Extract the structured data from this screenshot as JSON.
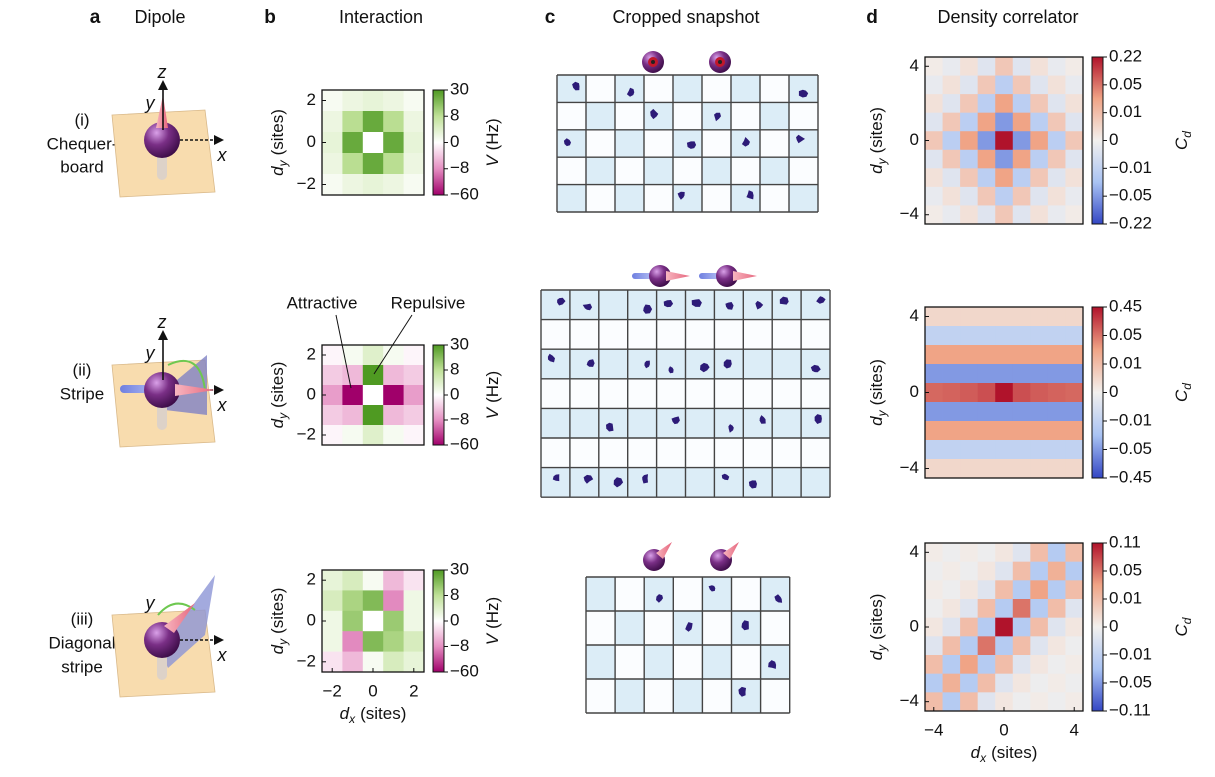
{
  "figure": {
    "panels": [
      {
        "letter": "a",
        "title": "Dipole"
      },
      {
        "letter": "b",
        "title": "Interaction"
      },
      {
        "letter": "c",
        "title": "Cropped snapshot"
      },
      {
        "letter": "d",
        "title": "Density correlator"
      }
    ],
    "rows": [
      {
        "roman": "(i)",
        "name": [
          "Chequer-",
          "board"
        ]
      },
      {
        "roman": "(ii)",
        "name": [
          "Stripe"
        ]
      },
      {
        "roman": "(iii)",
        "name": [
          "Diagonal",
          "stripe"
        ]
      }
    ],
    "axes": [
      "x",
      "y",
      "z"
    ]
  },
  "chart_data": [
    {
      "type": "heatmap",
      "xlim": [
        -2.5,
        2.5
      ],
      "ylim": [
        -2.5,
        2.5
      ],
      "yticks": [
        2,
        0,
        {
          "value": -2,
          "label": "−2"
        }
      ],
      "ylabel": {
        "var": "d",
        "sub": "y",
        "unit": "(sites)"
      },
      "clabel": {
        "var": "V",
        "unit": "(Hz)"
      },
      "clim": [
        -60,
        30
      ],
      "cticks": [
        30,
        8,
        0,
        {
          "value": -8,
          "label": "−8"
        },
        {
          "value": -60,
          "label": "−60"
        }
      ],
      "colormap": [
        "#a0006a",
        "#e58fc2",
        "#ffffff",
        "#bfe197",
        "#4f9a22"
      ],
      "values": [
        [
          1,
          2.3,
          3,
          2.3,
          1
        ],
        [
          2.3,
          9,
          25,
          9,
          2.3
        ],
        [
          3,
          25,
          0,
          25,
          3
        ],
        [
          2.3,
          9,
          25,
          9,
          2.3
        ],
        [
          1,
          2.3,
          3,
          2.3,
          1
        ]
      ]
    },
    {
      "type": "heatmap",
      "xlim": [
        -2.5,
        2.5
      ],
      "ylim": [
        -2.5,
        2.5
      ],
      "yticks": [
        2,
        0,
        {
          "value": -2,
          "label": "−2"
        }
      ],
      "ylabel": {
        "var": "d",
        "sub": "y",
        "unit": "(sites)"
      },
      "clabel": {
        "var": "V",
        "unit": "(Hz)"
      },
      "clim": [
        -60,
        30
      ],
      "cticks": [
        30,
        8,
        0,
        {
          "value": -8,
          "label": "−8"
        },
        {
          "value": -60,
          "label": "−60"
        }
      ],
      "colormap": [
        "#a0006a",
        "#e58fc2",
        "#ffffff",
        "#bfe197",
        "#4f9a22"
      ],
      "annotations": [
        "Attractive",
        "Repulsive"
      ],
      "values": [
        [
          -0.7,
          1.1,
          4,
          1.1,
          -0.7
        ],
        [
          -3.7,
          -5,
          30,
          -5,
          -3.7
        ],
        [
          -7,
          -60,
          0,
          -60,
          -7
        ],
        [
          -3.7,
          -5,
          30,
          -5,
          -3.7
        ],
        [
          -0.7,
          1.1,
          4,
          1.1,
          -0.7
        ]
      ]
    },
    {
      "type": "heatmap",
      "xlim": [
        -2.5,
        2.5
      ],
      "ylim": [
        -2.5,
        2.5
      ],
      "xticks": [
        {
          "value": -2,
          "label": "−2"
        },
        0,
        2
      ],
      "yticks": [
        2,
        0,
        {
          "value": -2,
          "label": "−2"
        }
      ],
      "xlabel": {
        "var": "d",
        "sub": "x",
        "unit": "(sites)"
      },
      "ylabel": {
        "var": "d",
        "sub": "y",
        "unit": "(sites)"
      },
      "clabel": {
        "var": "V",
        "unit": "(Hz)"
      },
      "clim": [
        -60,
        30
      ],
      "cticks": [
        30,
        8,
        0,
        {
          "value": -8,
          "label": "−8"
        },
        {
          "value": -60,
          "label": "−60"
        }
      ],
      "colormap": [
        "#a0006a",
        "#e58fc2",
        "#ffffff",
        "#bfe197",
        "#4f9a22"
      ],
      "values": [
        [
          3,
          5,
          1,
          -5,
          -2
        ],
        [
          5,
          12,
          20,
          -10,
          2
        ],
        [
          2,
          15,
          0,
          15,
          2
        ],
        [
          2,
          -10,
          20,
          12,
          5
        ],
        [
          -2,
          -5,
          1,
          5,
          3
        ]
      ]
    },
    {
      "type": "heatmap",
      "xlim": [
        -4.5,
        4.5
      ],
      "ylim": [
        -4.5,
        4.5
      ],
      "yticks": [
        4,
        0,
        {
          "value": -4,
          "label": "−4"
        }
      ],
      "ylabel": {
        "var": "d",
        "sub": "y",
        "unit": "(sites)"
      },
      "clabel": {
        "var": "C",
        "sub": "d"
      },
      "clim": [
        -0.22,
        0.22
      ],
      "cticks": [
        0.22,
        0.05,
        0.01,
        0,
        {
          "value": -0.01,
          "label": "−0.01"
        },
        {
          "value": -0.05,
          "label": "−0.05"
        },
        {
          "value": -0.22,
          "label": "−0.22"
        }
      ],
      "colormap": [
        "#3346c4",
        "#a9c3f3",
        "#f2f0ee",
        "#f0a486",
        "#b0132b"
      ],
      "values": [
        [
          0.001,
          -0.002,
          0.003,
          -0.004,
          0.008,
          -0.004,
          0.003,
          -0.002,
          0.001
        ],
        [
          -0.002,
          0.003,
          -0.004,
          0.008,
          -0.015,
          0.008,
          -0.004,
          0.003,
          -0.002
        ],
        [
          0.003,
          -0.004,
          0.008,
          -0.015,
          0.03,
          -0.015,
          0.008,
          -0.004,
          0.003
        ],
        [
          -0.004,
          0.008,
          -0.015,
          0.03,
          -0.05,
          0.03,
          -0.015,
          0.008,
          -0.004
        ],
        [
          0.008,
          -0.015,
          0.03,
          -0.05,
          0.22,
          -0.05,
          0.03,
          -0.015,
          0.008
        ],
        [
          -0.004,
          0.008,
          -0.015,
          0.03,
          -0.05,
          0.03,
          -0.015,
          0.008,
          -0.004
        ],
        [
          0.003,
          -0.004,
          0.008,
          -0.015,
          0.03,
          -0.015,
          0.008,
          -0.004,
          0.003
        ],
        [
          -0.002,
          0.003,
          -0.004,
          0.008,
          -0.015,
          0.008,
          -0.004,
          0.003,
          -0.002
        ],
        [
          0.001,
          -0.002,
          0.003,
          -0.004,
          0.008,
          -0.004,
          0.003,
          -0.002,
          0.001
        ]
      ]
    },
    {
      "type": "heatmap",
      "xlim": [
        -4.5,
        4.5
      ],
      "ylim": [
        -4.5,
        4.5
      ],
      "yticks": [
        4,
        0,
        {
          "value": -4,
          "label": "−4"
        }
      ],
      "ylabel": {
        "var": "d",
        "sub": "y",
        "unit": "(sites)"
      },
      "clabel": {
        "var": "C",
        "sub": "d"
      },
      "clim": [
        -0.45,
        0.45
      ],
      "cticks": [
        0.45,
        0.05,
        0.01,
        0,
        {
          "value": -0.01,
          "label": "−0.01"
        },
        {
          "value": -0.05,
          "label": "−0.05"
        },
        {
          "value": -0.45,
          "label": "−0.45"
        }
      ],
      "colormap": [
        "#3346c4",
        "#a9c3f3",
        "#f2f0ee",
        "#f0a486",
        "#b0132b"
      ],
      "values": [
        [
          0.005,
          0.005,
          0.005,
          0.005,
          0.005,
          0.005,
          0.005,
          0.005,
          0.005
        ],
        [
          -0.01,
          -0.01,
          -0.01,
          -0.01,
          -0.01,
          -0.01,
          -0.01,
          -0.01,
          -0.01
        ],
        [
          0.03,
          0.03,
          0.03,
          0.03,
          0.03,
          0.03,
          0.03,
          0.03,
          0.03
        ],
        [
          -0.05,
          -0.05,
          -0.05,
          -0.05,
          -0.05,
          -0.05,
          -0.05,
          -0.05,
          -0.05
        ],
        [
          0.1,
          0.12,
          0.15,
          0.2,
          0.45,
          0.2,
          0.15,
          0.12,
          0.1
        ],
        [
          -0.05,
          -0.05,
          -0.05,
          -0.05,
          -0.05,
          -0.05,
          -0.05,
          -0.05,
          -0.05
        ],
        [
          0.03,
          0.03,
          0.03,
          0.03,
          0.03,
          0.03,
          0.03,
          0.03,
          0.03
        ],
        [
          -0.01,
          -0.01,
          -0.01,
          -0.01,
          -0.01,
          -0.01,
          -0.01,
          -0.01,
          -0.01
        ],
        [
          0.005,
          0.005,
          0.005,
          0.005,
          0.005,
          0.005,
          0.005,
          0.005,
          0.005
        ]
      ]
    },
    {
      "type": "heatmap",
      "xlim": [
        -4.5,
        4.5
      ],
      "ylim": [
        -4.5,
        4.5
      ],
      "xticks": [
        {
          "value": -4,
          "label": "−4"
        },
        0,
        4
      ],
      "yticks": [
        4,
        0,
        {
          "value": -4,
          "label": "−4"
        }
      ],
      "xlabel": {
        "var": "d",
        "sub": "x",
        "unit": "(sites)"
      },
      "ylabel": {
        "var": "d",
        "sub": "y",
        "unit": "(sites)"
      },
      "clabel": {
        "var": "C",
        "sub": "d"
      },
      "clim": [
        -0.11,
        0.11
      ],
      "cticks": [
        0.11,
        0.05,
        0.01,
        0,
        {
          "value": -0.01,
          "label": "−0.01"
        },
        {
          "value": -0.05,
          "label": "−0.05"
        },
        {
          "value": -0.11,
          "label": "−0.11"
        }
      ],
      "colormap": [
        "#3346c4",
        "#a9c3f3",
        "#f2f0ee",
        "#f0a486",
        "#b0132b"
      ],
      "values": [
        [
          0.001,
          -0.001,
          0.001,
          -0.001,
          0.002,
          -0.004,
          0.01,
          -0.02,
          0.01
        ],
        [
          -0.001,
          0.001,
          -0.001,
          0.002,
          -0.004,
          0.01,
          -0.02,
          0.02,
          -0.02
        ],
        [
          0.001,
          -0.001,
          0.002,
          -0.004,
          0.01,
          -0.02,
          0.03,
          -0.02,
          0.01
        ],
        [
          -0.001,
          0.002,
          -0.004,
          0.01,
          -0.02,
          0.05,
          -0.02,
          0.01,
          -0.004
        ],
        [
          0.002,
          -0.004,
          0.01,
          -0.02,
          0.11,
          -0.02,
          0.01,
          -0.004,
          0.002
        ],
        [
          -0.004,
          0.01,
          -0.02,
          0.05,
          -0.02,
          0.01,
          -0.004,
          0.002,
          -0.001
        ],
        [
          0.01,
          -0.02,
          0.03,
          -0.02,
          0.01,
          -0.004,
          0.002,
          -0.001,
          0.001
        ],
        [
          -0.02,
          0.02,
          -0.02,
          0.01,
          -0.004,
          0.002,
          -0.001,
          0.001,
          -0.001
        ],
        [
          0.01,
          -0.02,
          0.01,
          -0.004,
          0.002,
          -0.001,
          0.001,
          -0.001,
          0.001
        ]
      ]
    }
  ]
}
